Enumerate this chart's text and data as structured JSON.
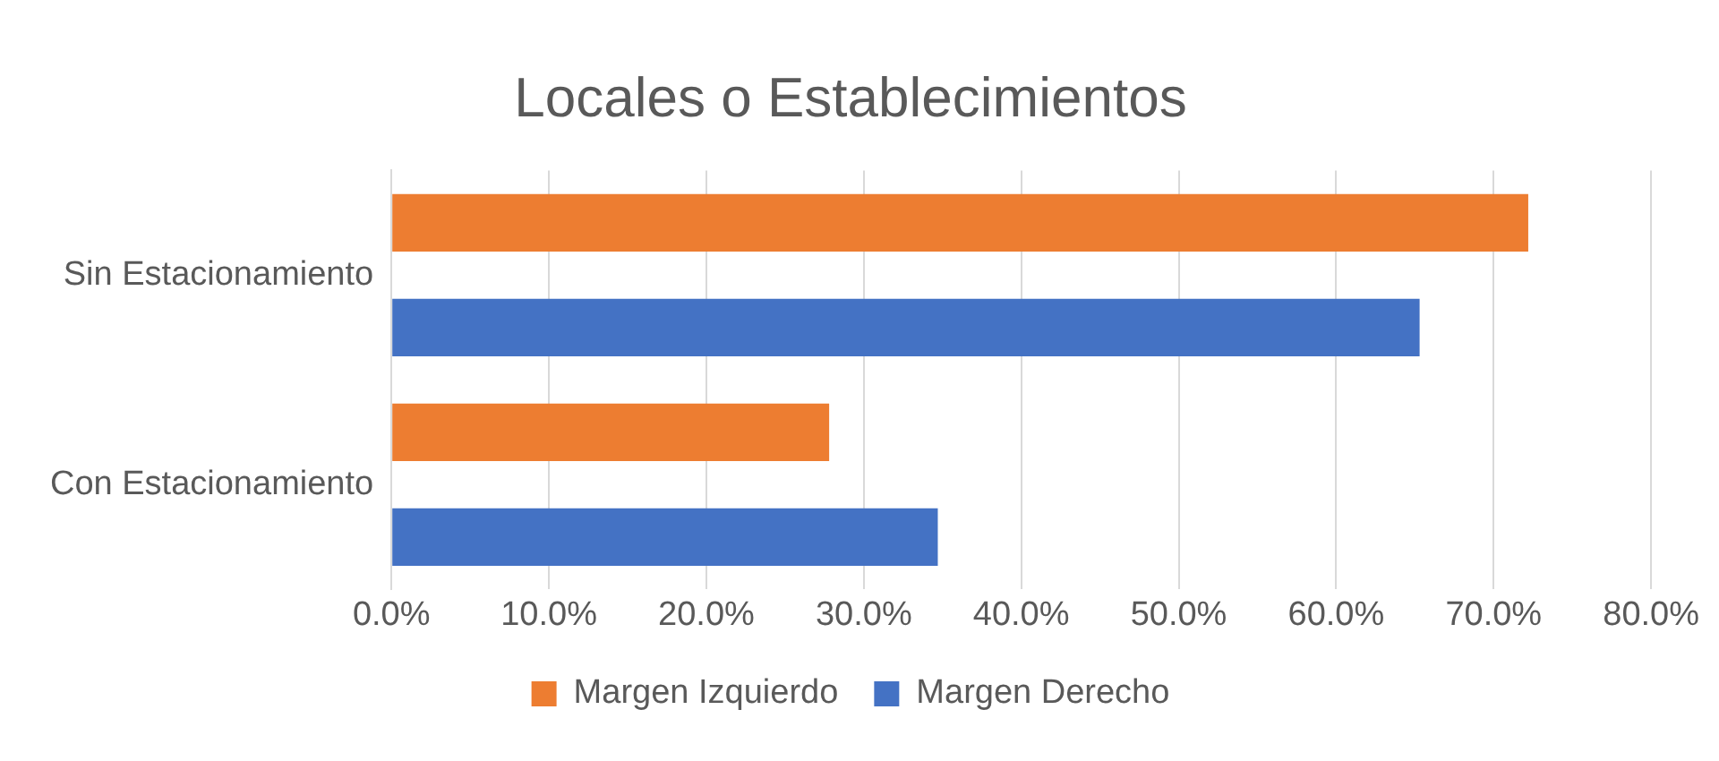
{
  "chart_data": {
    "type": "bar",
    "orientation": "horizontal",
    "title": "Locales o Establecimientos",
    "categories": [
      "Sin Estacionamiento",
      "Con Estacionamiento"
    ],
    "series": [
      {
        "name": "Margen Izquierdo",
        "color": "#ed7d31",
        "values": [
          72.2,
          27.8
        ]
      },
      {
        "name": "Margen Derecho",
        "color": "#4472c4",
        "values": [
          65.3,
          34.7
        ]
      }
    ],
    "xlim": [
      0,
      80
    ],
    "xticks": [
      {
        "value": 0,
        "label": "0.0%"
      },
      {
        "value": 10,
        "label": "10.0%"
      },
      {
        "value": 20,
        "label": "20.0%"
      },
      {
        "value": 30,
        "label": "30.0%"
      },
      {
        "value": 40,
        "label": "40.0%"
      },
      {
        "value": 50,
        "label": "50.0%"
      },
      {
        "value": 60,
        "label": "60.0%"
      },
      {
        "value": 70,
        "label": "70.0%"
      },
      {
        "value": 80,
        "label": "80.0%"
      }
    ],
    "grid": "x",
    "legend": "bottom"
  }
}
